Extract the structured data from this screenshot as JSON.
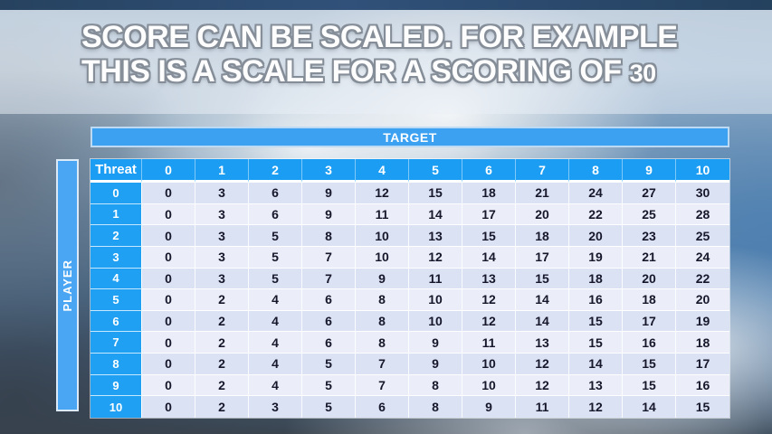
{
  "slide": {
    "title": {
      "line1": "SCORE CAN BE SCALED. FOR EXAMPLE",
      "line2": "THIS IS A SCALE FOR A SCORING OF",
      "line2_number": "30"
    },
    "target_label": "TARGET",
    "player_label": "PLAYER"
  },
  "table": {
    "corner_label": "Threat",
    "column_headers": [
      "0",
      "1",
      "2",
      "3",
      "4",
      "5",
      "6",
      "7",
      "8",
      "9",
      "10"
    ],
    "rows": [
      {
        "label": "0",
        "values": [
          0,
          3,
          6,
          9,
          12,
          15,
          18,
          21,
          24,
          27,
          30
        ]
      },
      {
        "label": "1",
        "values": [
          0,
          3,
          6,
          9,
          11,
          14,
          17,
          20,
          22,
          25,
          28
        ]
      },
      {
        "label": "2",
        "values": [
          0,
          3,
          5,
          8,
          10,
          13,
          15,
          18,
          20,
          23,
          25
        ]
      },
      {
        "label": "3",
        "values": [
          0,
          3,
          5,
          7,
          10,
          12,
          14,
          17,
          19,
          21,
          24
        ]
      },
      {
        "label": "4",
        "values": [
          0,
          3,
          5,
          7,
          9,
          11,
          13,
          15,
          18,
          20,
          22
        ]
      },
      {
        "label": "5",
        "values": [
          0,
          2,
          4,
          6,
          8,
          10,
          12,
          14,
          16,
          18,
          20
        ]
      },
      {
        "label": "6",
        "values": [
          0,
          2,
          4,
          6,
          8,
          10,
          12,
          14,
          15,
          17,
          19
        ]
      },
      {
        "label": "7",
        "values": [
          0,
          2,
          4,
          6,
          8,
          9,
          11,
          13,
          15,
          16,
          18
        ]
      },
      {
        "label": "8",
        "values": [
          0,
          2,
          4,
          5,
          7,
          9,
          10,
          12,
          14,
          15,
          17
        ]
      },
      {
        "label": "9",
        "values": [
          0,
          2,
          4,
          5,
          7,
          8,
          10,
          12,
          13,
          15,
          16
        ]
      },
      {
        "label": "10",
        "values": [
          0,
          2,
          3,
          5,
          6,
          8,
          9,
          11,
          12,
          14,
          15
        ]
      }
    ]
  },
  "colors": {
    "target_bar": "#3da1f2",
    "player_bar": "#4aa5f2",
    "header_cell": "#1b9df3",
    "row_label_cell": "#1fa0f3",
    "row_band_dark": "#dbe2f4",
    "row_band_light": "#ebeef9",
    "data_text": "#17172b",
    "top_strip": "#2b4766"
  }
}
